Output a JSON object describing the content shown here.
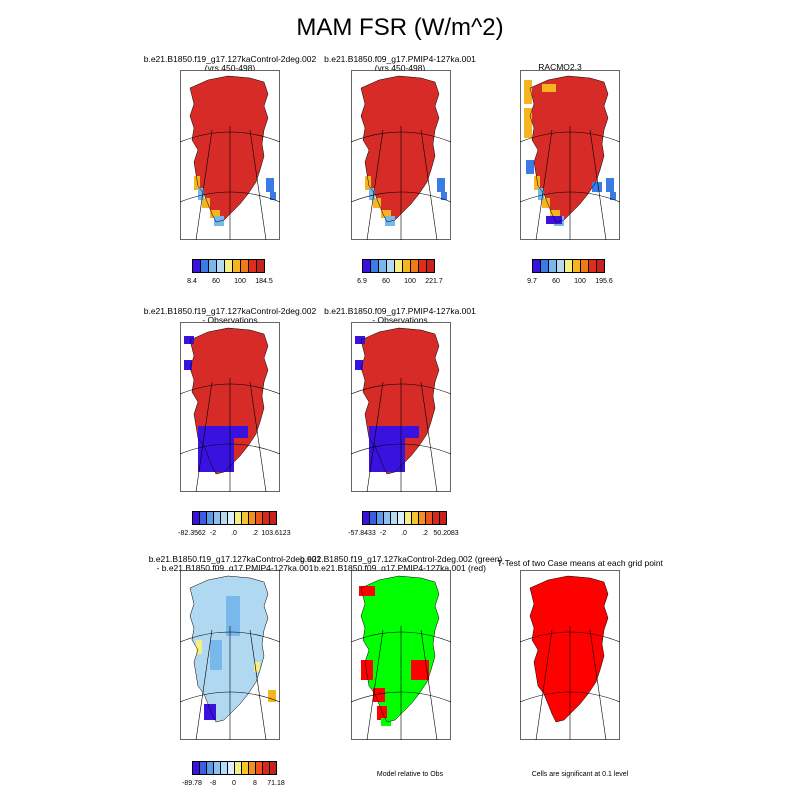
{
  "title": "MAM FSR (W/m^2)",
  "panels": [
    {
      "line1": "b.e21.B1850.f19_g17.127kaControl-2deg.002",
      "line2": "(yrs 450-498)"
    },
    {
      "line1": "b.e21.B1850.f09_g17.PMIP4-127ka.001",
      "line2": "(yrs 450-498)"
    },
    {
      "line1": "RACMO2.3",
      "line2": ""
    },
    {
      "line1": "b.e21.B1850.f19_g17.127kaControl-2deg.002",
      "line2": "- Observations"
    },
    {
      "line1": "b.e21.B1850.f09_g17.PMIP4-127ka.001",
      "line2": "- Observations"
    },
    {
      "line1": "b.e21.B1850.f19_g17.127kaControl-2deg.002",
      "line2": "- b.e21.B1850.f09_g17.PMIP4-127ka.001"
    },
    {
      "line1": "b.e21.B1850.f19_g17.127kaControl-2deg.002 (green)",
      "line2": "b.e21.B1850.f09_g17.PMIP4-127ka.001 (red)"
    },
    {
      "line1": "T-Test of two Case means at each grid point",
      "line2": ""
    }
  ],
  "colorbars": [
    {
      "labels": [
        "8.4",
        "60",
        "100",
        "184.5"
      ]
    },
    {
      "labels": [
        "6.9",
        "60",
        "100",
        "221.7"
      ]
    },
    {
      "labels": [
        "9.7",
        "60",
        "100",
        "195.6"
      ]
    },
    {
      "labels": [
        "-82.3562",
        "-2",
        ".0",
        ".2",
        "103.6123"
      ]
    },
    {
      "labels": [
        "-57.8433",
        "-2",
        ".0",
        ".2",
        "50.2083"
      ]
    },
    {
      "labels": [
        "-89.78",
        "-8",
        "0",
        "8",
        "71.18"
      ]
    }
  ],
  "notes": {
    "model_relative": "Model relative to Obs",
    "significance": "Cells are significant at 0.1 level"
  },
  "colors": {
    "abs_scale": [
      "#3a12e0",
      "#3a7be6",
      "#78b8ea",
      "#b4dbf2",
      "#f5ef86",
      "#f5b520",
      "#f07a1a",
      "#e02c1a",
      "#c8211e"
    ],
    "diff_scale": [
      "#3a12e0",
      "#3a5de6",
      "#5d9ae8",
      "#8cc0ee",
      "#b4dbf2",
      "#dcefff",
      "#f5ef86",
      "#f5c530",
      "#f58f22",
      "#ec541c",
      "#d8281e",
      "#c8211e"
    ],
    "dominant": "#d62b27",
    "sig_red": "#ff0000",
    "green": "#00ff00",
    "diff_fill": "#b0d8f0"
  }
}
